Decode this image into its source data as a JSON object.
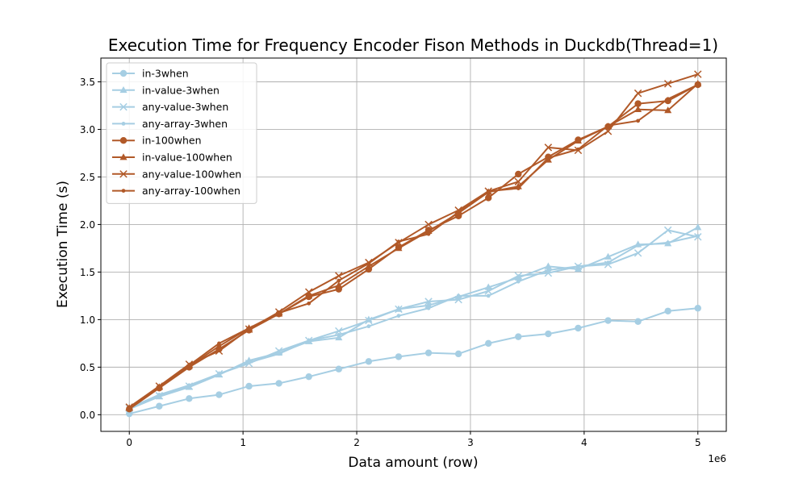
{
  "chart_data": {
    "type": "line",
    "title": "Execution Time for Frequency Encoder Fison Methods in Duckdb(Thread=1)",
    "xlabel": "Data amount (row)",
    "ylabel": "Execution Time (s)",
    "x_offset_label": "1e6",
    "xlim": [
      -250000,
      5250000
    ],
    "ylim": [
      -0.175,
      3.75
    ],
    "x_ticks": [
      0,
      1000000,
      2000000,
      3000000,
      4000000,
      5000000
    ],
    "x_tick_labels": [
      "0",
      "1",
      "2",
      "3",
      "4",
      "5"
    ],
    "y_ticks": [
      0.0,
      0.5,
      1.0,
      1.5,
      2.0,
      2.5,
      3.0,
      3.5
    ],
    "y_tick_labels": [
      "0.0",
      "0.5",
      "1.0",
      "1.5",
      "2.0",
      "2.5",
      "3.0",
      "3.5"
    ],
    "grid": true,
    "legend_position": "top-left",
    "colors": {
      "light": "#a6cee3",
      "dark": "#b15928"
    },
    "x": [
      0,
      263158,
      526316,
      789474,
      1052632,
      1315789,
      1578947,
      1842105,
      2105263,
      2368421,
      2631579,
      2894737,
      3157895,
      3421053,
      3684211,
      3947368,
      4210526,
      4473684,
      4736842,
      5000000
    ],
    "series": [
      {
        "name": "in-3when",
        "color": "#a6cee3",
        "marker": "circle",
        "values": [
          0.01,
          0.09,
          0.17,
          0.21,
          0.3,
          0.33,
          0.4,
          0.48,
          0.56,
          0.61,
          0.65,
          0.64,
          0.75,
          0.82,
          0.85,
          0.91,
          0.99,
          0.98,
          1.09,
          1.12
        ]
      },
      {
        "name": "in-value-3when",
        "color": "#a6cee3",
        "marker": "triangle",
        "values": [
          0.06,
          0.19,
          0.29,
          0.42,
          0.57,
          0.65,
          0.77,
          0.81,
          1.0,
          1.11,
          1.15,
          1.24,
          1.34,
          1.44,
          1.56,
          1.53,
          1.66,
          1.79,
          1.8,
          1.97
        ]
      },
      {
        "name": "any-value-3when",
        "color": "#a6cee3",
        "marker": "x",
        "values": [
          0.07,
          0.2,
          0.3,
          0.43,
          0.54,
          0.67,
          0.78,
          0.88,
          0.99,
          1.11,
          1.19,
          1.21,
          1.3,
          1.46,
          1.49,
          1.56,
          1.58,
          1.7,
          1.94,
          1.87
        ]
      },
      {
        "name": "any-array-3when",
        "color": "#a6cee3",
        "marker": "dot",
        "values": [
          0.07,
          0.21,
          0.31,
          0.43,
          0.55,
          0.64,
          0.78,
          0.84,
          0.93,
          1.04,
          1.12,
          1.25,
          1.25,
          1.4,
          1.52,
          1.56,
          1.6,
          1.78,
          1.81,
          1.88
        ]
      },
      {
        "name": "in-100when",
        "color": "#b15928",
        "marker": "circle",
        "values": [
          0.06,
          0.28,
          0.5,
          0.69,
          0.89,
          1.06,
          1.24,
          1.32,
          1.53,
          1.76,
          1.94,
          2.09,
          2.28,
          2.53,
          2.71,
          2.89,
          3.03,
          3.27,
          3.3,
          3.47
        ]
      },
      {
        "name": "in-value-100when",
        "color": "#b15928",
        "marker": "triangle",
        "values": [
          0.07,
          0.29,
          0.51,
          0.72,
          0.91,
          1.06,
          1.25,
          1.36,
          1.56,
          1.75,
          1.93,
          2.12,
          2.34,
          2.4,
          2.68,
          2.88,
          3.03,
          3.21,
          3.2,
          3.48
        ]
      },
      {
        "name": "any-value-100when",
        "color": "#b15928",
        "marker": "x",
        "values": [
          0.08,
          0.3,
          0.53,
          0.67,
          0.9,
          1.08,
          1.29,
          1.46,
          1.6,
          1.81,
          2.0,
          2.15,
          2.35,
          2.45,
          2.81,
          2.78,
          2.98,
          3.38,
          3.48,
          3.58
        ]
      },
      {
        "name": "any-array-100when",
        "color": "#b15928",
        "marker": "dot",
        "values": [
          0.07,
          0.3,
          0.52,
          0.75,
          0.91,
          1.07,
          1.17,
          1.41,
          1.59,
          1.82,
          1.9,
          2.13,
          2.35,
          2.38,
          2.7,
          2.79,
          3.04,
          3.09,
          3.32,
          3.47
        ]
      }
    ]
  }
}
